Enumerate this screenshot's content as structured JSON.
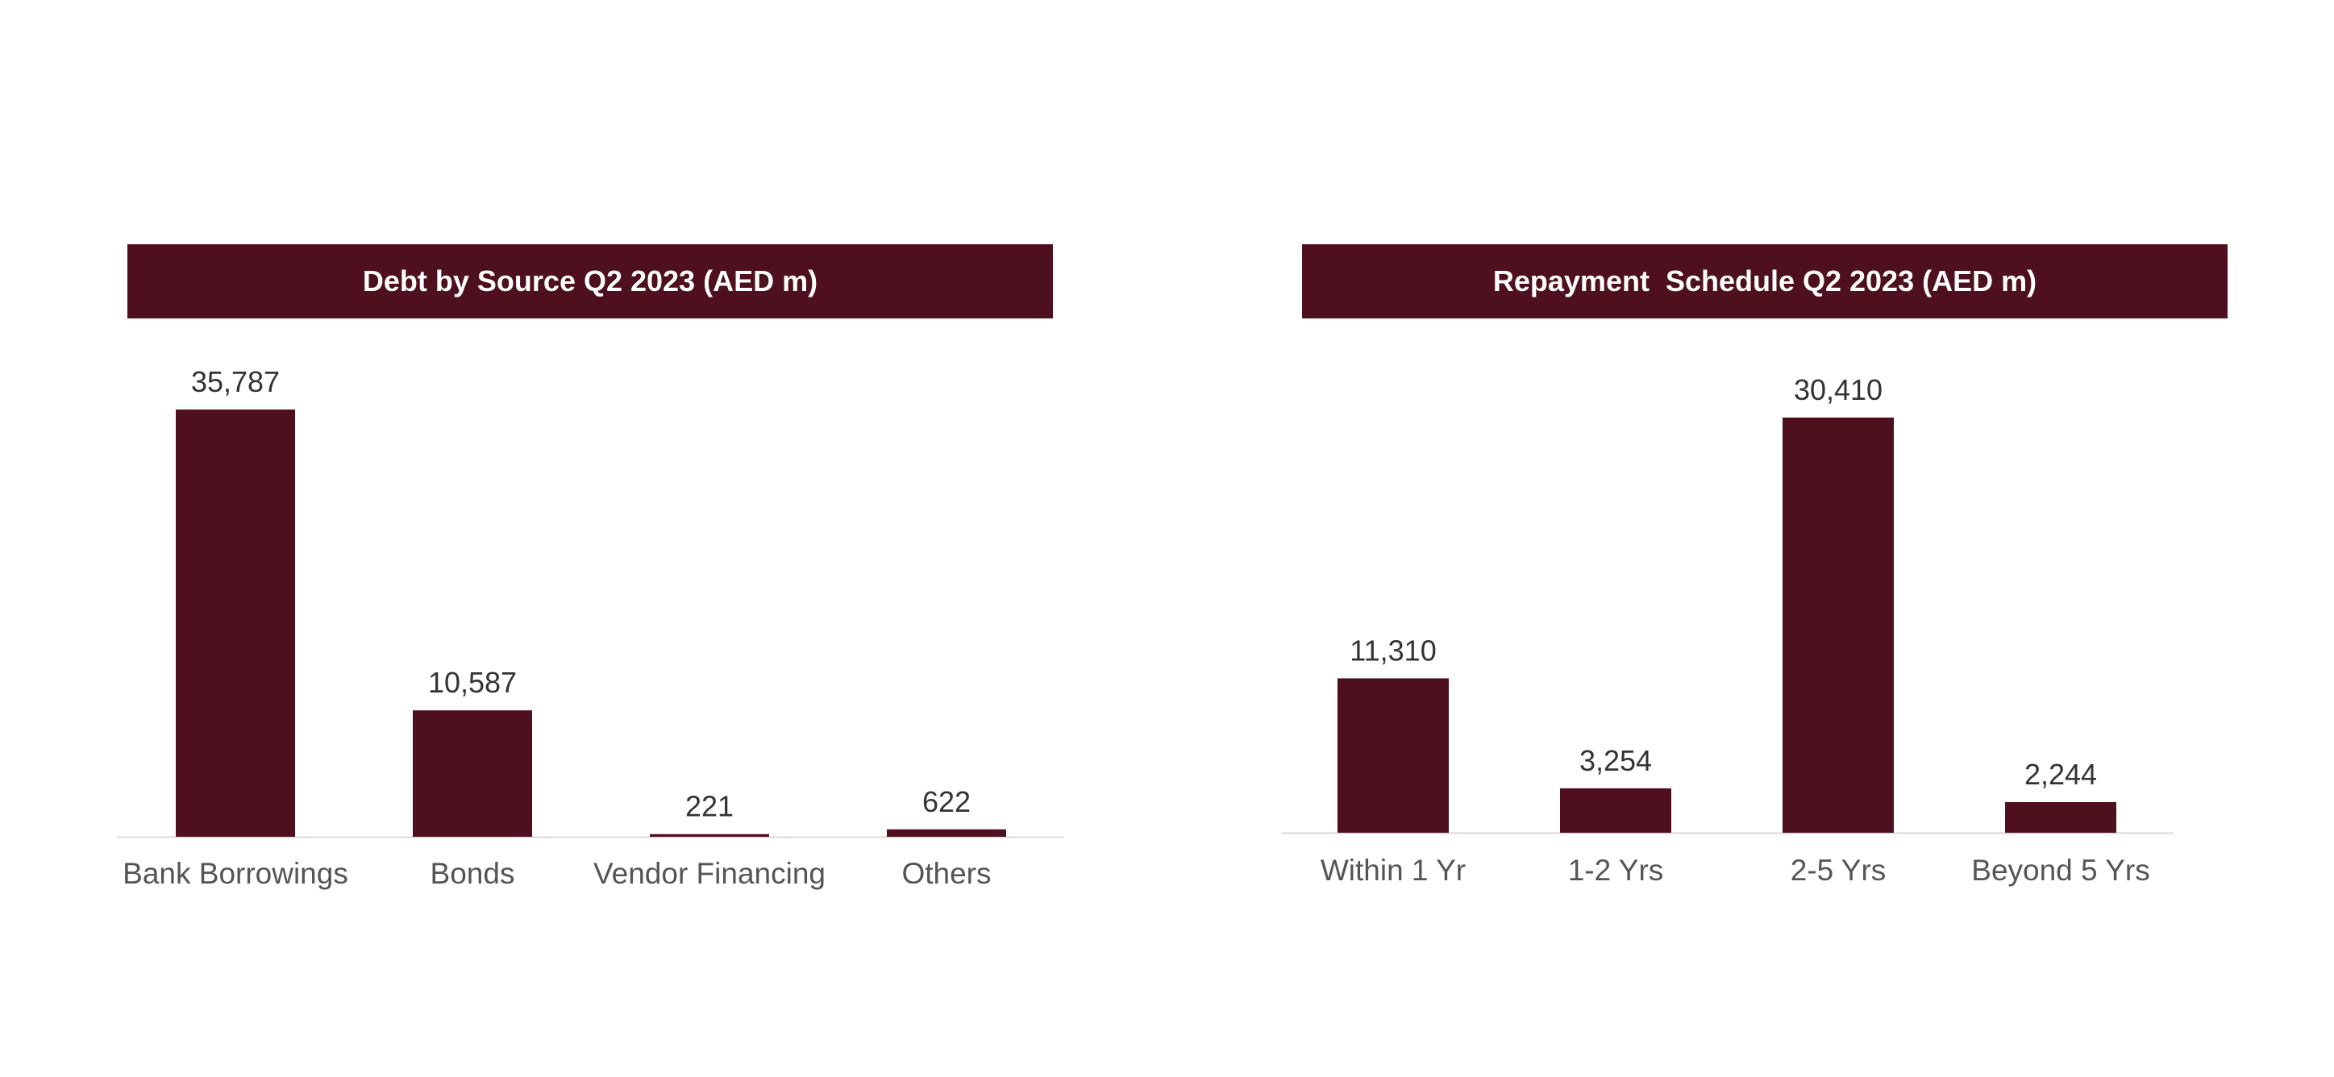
{
  "theme": {
    "bar_color": "#4e0f1e",
    "title_bg": "#4e0f1e",
    "title_text": "#ffffff",
    "axis_color": "#d9d9d9"
  },
  "chart_data": [
    {
      "type": "bar",
      "title": "Debt by Source Q2 2023 (AED m)",
      "categories": [
        "Bank Borrowings",
        "Bonds",
        "Vendor Financing",
        "Others"
      ],
      "values": [
        35787,
        10587,
        221,
        622
      ],
      "value_labels": [
        "35,787",
        "10,587",
        "221",
        "622"
      ],
      "ylim": [
        0,
        35787
      ],
      "grid": false,
      "legend": "none"
    },
    {
      "type": "bar",
      "title": "Repayment  Schedule Q2 2023 (AED m)",
      "categories": [
        "Within 1 Yr",
        "1-2 Yrs",
        "2-5 Yrs",
        "Beyond 5 Yrs"
      ],
      "values": [
        11310,
        3254,
        30410,
        2244
      ],
      "value_labels": [
        "11,310",
        "3,254",
        "30,410",
        "2,244"
      ],
      "ylim": [
        0,
        30410
      ],
      "grid": false,
      "legend": "none"
    }
  ]
}
